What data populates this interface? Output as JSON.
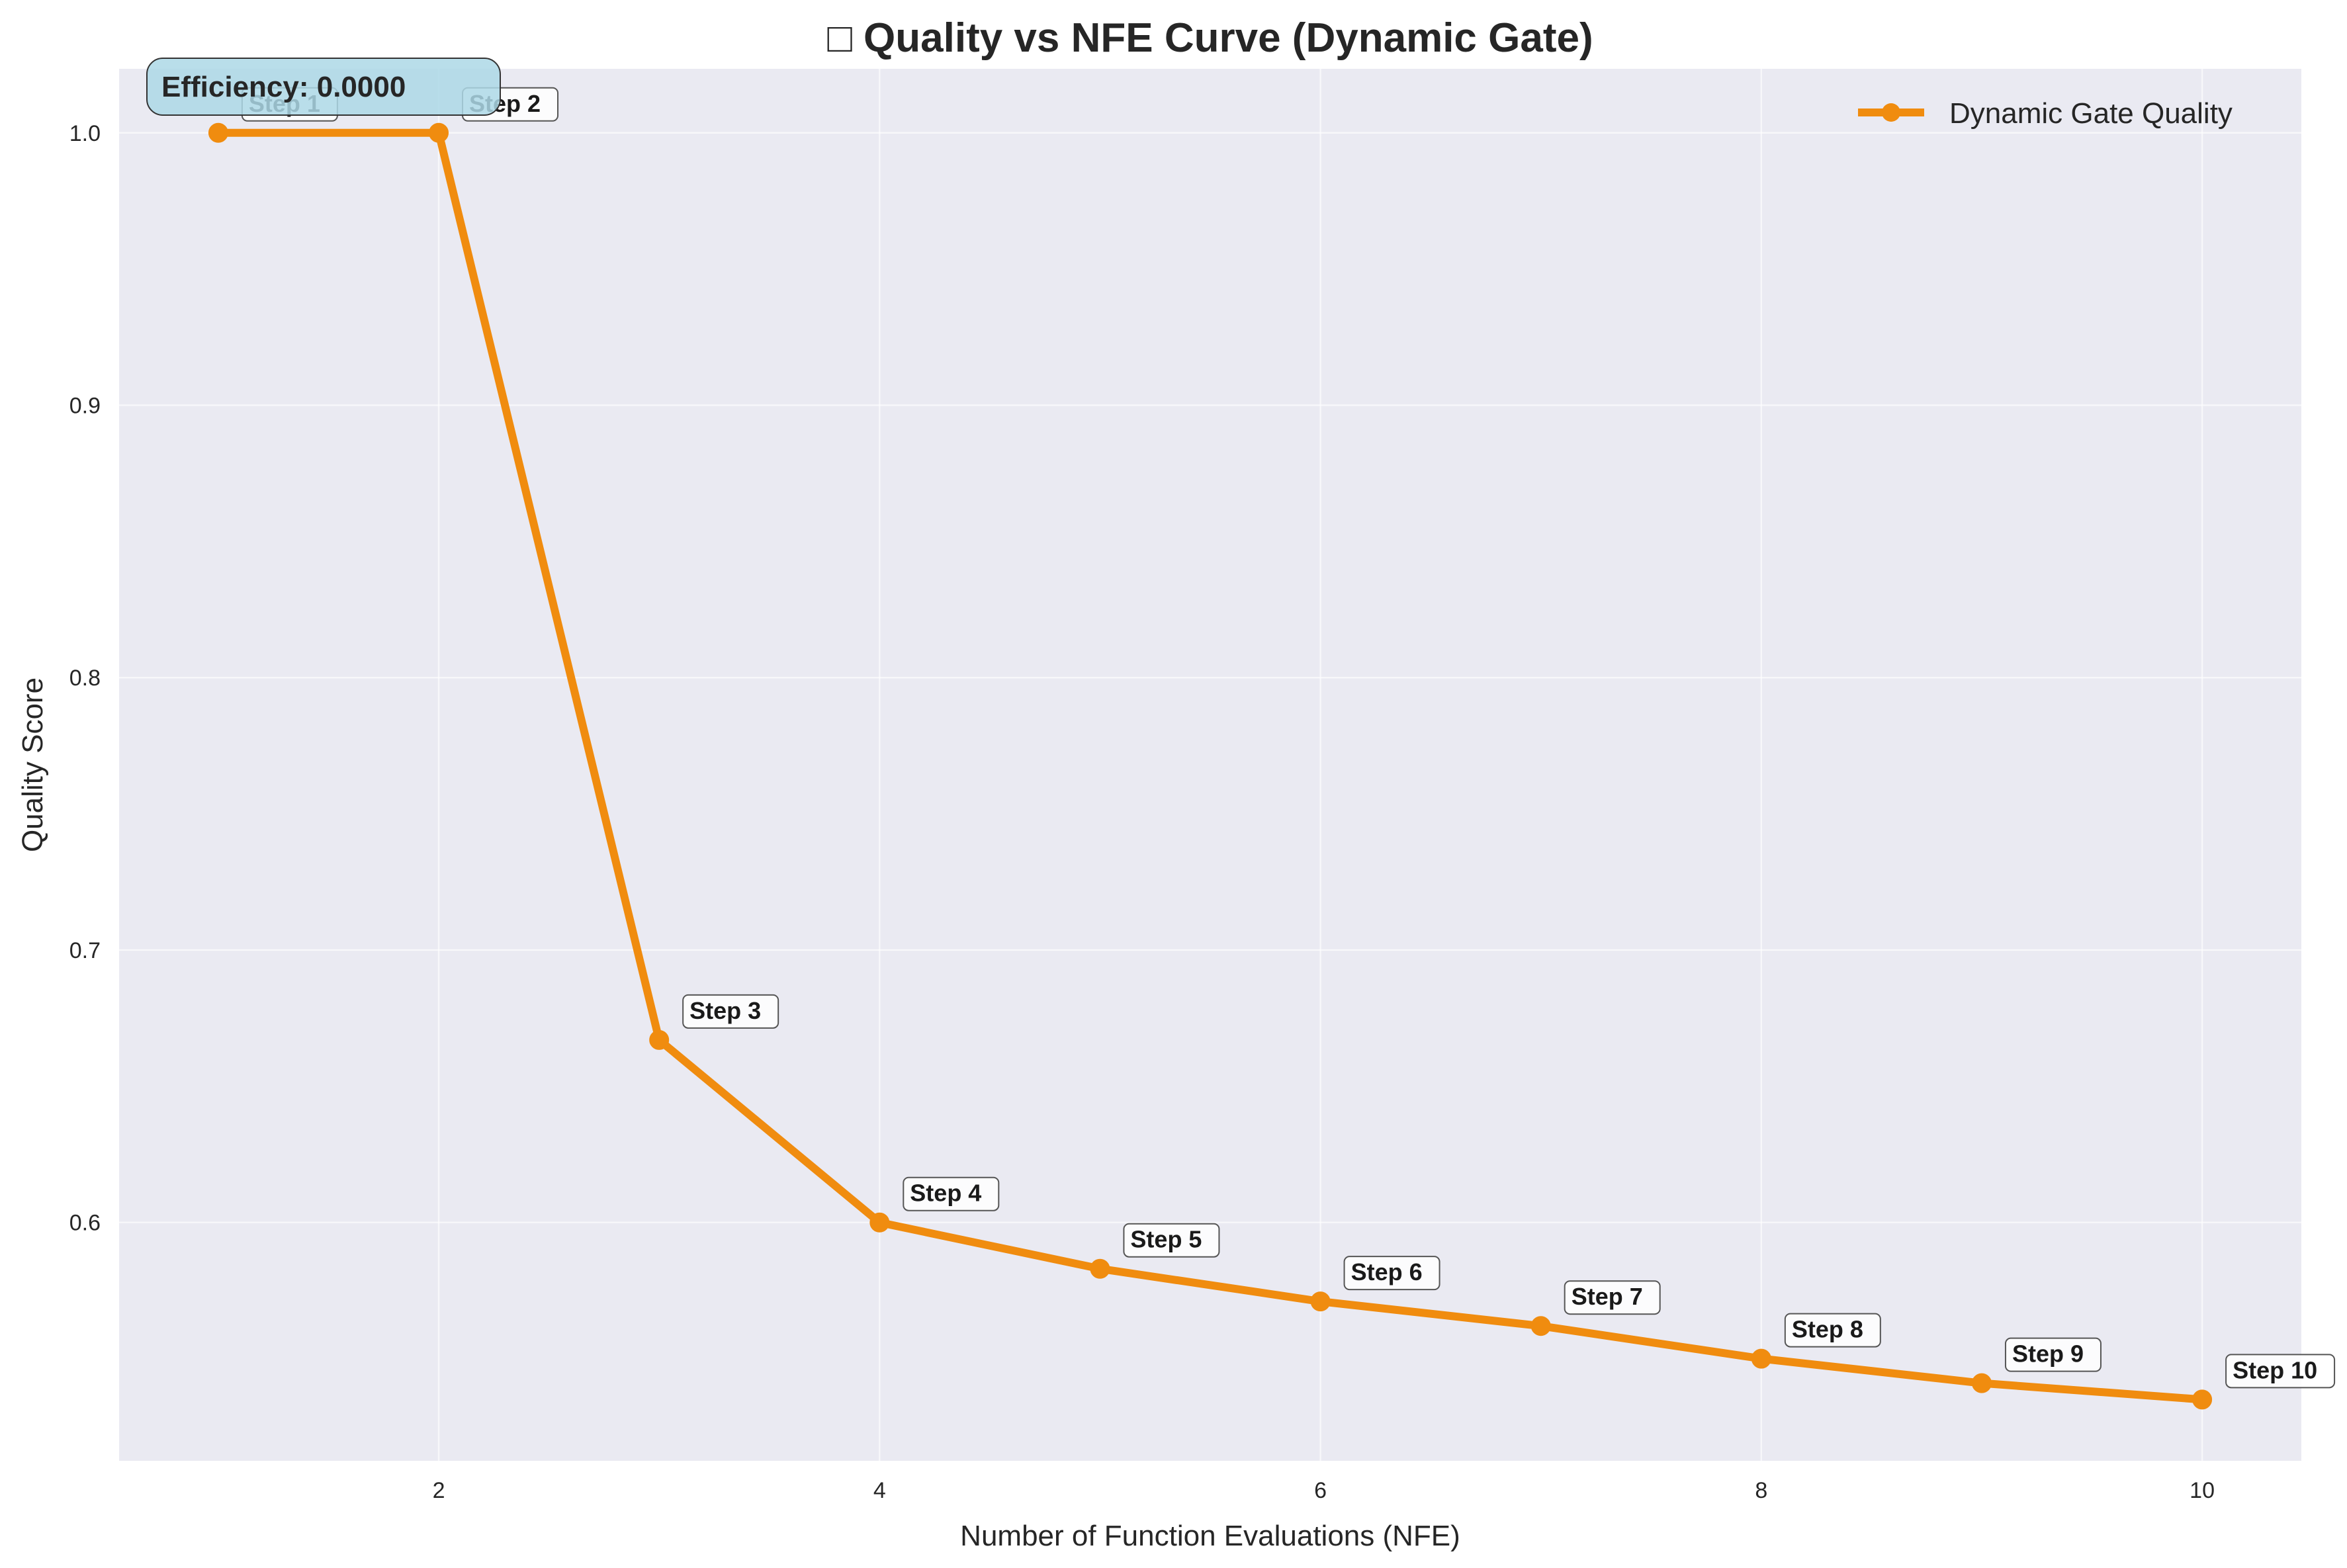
{
  "chart_data": {
    "type": "line",
    "title": "□ Quality vs NFE Curve (Dynamic Gate)",
    "xlabel": "Number of Function Evaluations (NFE)",
    "ylabel": "Quality Score",
    "xlim": [
      0.55,
      10.45
    ],
    "ylim": [
      0.5125,
      1.0235
    ],
    "xticks": [
      2,
      4,
      6,
      8,
      10
    ],
    "yticks": [
      0.6,
      0.7,
      0.8,
      0.9,
      1.0
    ],
    "ytick_labels": [
      "0.6",
      "0.7",
      "0.8",
      "0.9",
      "1.0"
    ],
    "grid": true,
    "legend_position": "top-right",
    "series": [
      {
        "name": "Dynamic Gate Quality",
        "color": "#f08c0f",
        "x": [
          1,
          2,
          3,
          4,
          5,
          6,
          7,
          8,
          9,
          10
        ],
        "y": [
          1.0,
          1.0,
          0.667,
          0.6,
          0.583,
          0.571,
          0.562,
          0.55,
          0.541,
          0.535
        ]
      }
    ],
    "annotations": [
      "Step 1",
      "Step 2",
      "Step 3",
      "Step 4",
      "Step 5",
      "Step 6",
      "Step 7",
      "Step 8",
      "Step 9",
      "Step 10"
    ],
    "info_box": "Efficiency: 0.0000"
  },
  "colors": {
    "plot_background": "#eaeaf2",
    "grid": "#ffffff",
    "line": "#f08c0f",
    "info_box_fill": "#add8e6"
  }
}
